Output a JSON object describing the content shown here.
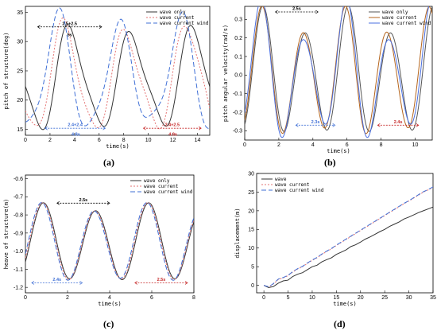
{
  "chart_data": [
    {
      "id": "a",
      "caption": "(a)",
      "type": "line",
      "xlabel": "time(s)",
      "ylabel": "pitch of structure(deg)",
      "xlim": [
        0,
        15
      ],
      "ylim": [
        14,
        36
      ],
      "xticks": [
        0,
        2,
        4,
        6,
        8,
        10,
        12,
        14
      ],
      "yticks": [
        15,
        20,
        25,
        30,
        35
      ],
      "legend_position": "top-right",
      "grid": false,
      "series": [
        {
          "name": "wave only",
          "color": "#333333",
          "dash": "none",
          "model": {
            "center": 23.5,
            "amp": 8,
            "period": 5,
            "phase": 3.0,
            "amp_mod": 0.08,
            "mod_period": 12.0,
            "period2": 2.5,
            "amp2": 1.5,
            "phase2": 0.0
          }
        },
        {
          "name": "wave current",
          "color": "#e57373",
          "dash": "2 2",
          "model": {
            "center": 23.5,
            "amp": 8.5,
            "period": 5,
            "phase": 2.4,
            "amp_mod": 0.1,
            "mod_period": 12.0,
            "period2": 2.4,
            "amp2": 1.4,
            "phase2": 0.3
          }
        },
        {
          "name": "wave current wind",
          "color": "#3f6fd6",
          "dash": "6 3",
          "model": {
            "center": 24,
            "amp": 9,
            "period": 5,
            "phase": 1.8,
            "amp_mod": 0.12,
            "mod_period": 12.0,
            "period2": 2.5,
            "amp2": 1.8,
            "phase2": 0.6
          }
        }
      ],
      "annotations": [
        {
          "text": "2.5+2.5",
          "color": "#000000",
          "x1": 1.0,
          "x2": 6.2,
          "y": 32.5
        },
        {
          "text": "5s",
          "color": "#000000",
          "x1": null,
          "x2": null,
          "y": 31.2,
          "x": 3.6
        },
        {
          "text": "2.4+2.4",
          "color": "#3f6fd6",
          "x1": 1.6,
          "x2": 6.5,
          "y": 15.2
        },
        {
          "text": "4.8s",
          "color": "#3f6fd6",
          "x1": null,
          "x2": null,
          "y": 14.2,
          "x": 4.1
        },
        {
          "text": "2.4+2.5",
          "color": "#c62828",
          "x1": 9.6,
          "x2": 14.3,
          "y": 15.2
        },
        {
          "text": "4.9s",
          "color": "#c62828",
          "x1": null,
          "x2": null,
          "y": 14.2,
          "x": 12.0
        }
      ]
    },
    {
      "id": "b",
      "caption": "(b)",
      "type": "line",
      "xlabel": "time(s)",
      "ylabel": "pitch angular velocity(rad/s)",
      "xlim": [
        0,
        11
      ],
      "ylim": [
        -0.35,
        0.37
      ],
      "xticks": [
        0,
        2,
        4,
        6,
        8,
        10
      ],
      "yticks": [
        -0.3,
        -0.2,
        -0.1,
        0.0,
        0.1,
        0.2,
        0.3
      ],
      "legend_position": "top-right",
      "grid": false,
      "series": [
        {
          "name": "wave only",
          "color": "#555555",
          "dash": "none",
          "model": {
            "center": 0,
            "amp": 0.3,
            "period": 2.5,
            "phase": 1.1,
            "amp_mod": 0.15,
            "mod_period": 5.0,
            "period2": 5,
            "amp2": 0.03,
            "phase2": 0
          }
        },
        {
          "name": "wave current",
          "color": "#b5651d",
          "dash": "none",
          "model": {
            "center": 0,
            "amp": 0.3,
            "period": 2.45,
            "phase": 1.0,
            "amp_mod": 0.15,
            "mod_period": 5.0,
            "period2": 5,
            "amp2": 0.03,
            "phase2": 0.3
          }
        },
        {
          "name": "wave current wind",
          "color": "#4a6fe0",
          "dash": "none",
          "model": {
            "center": 0,
            "amp": 0.3,
            "period": 2.5,
            "phase": 0.85,
            "amp_mod": 0.25,
            "mod_period": 5.0,
            "period2": 5,
            "amp2": 0.04,
            "phase2": 0.6
          }
        }
      ],
      "annotations": [
        {
          "text": "2.5s",
          "color": "#000000",
          "x1": 1.8,
          "x2": 4.3,
          "y": 0.34
        },
        {
          "text": "2.3s",
          "color": "#3f6fd6",
          "x1": 3.0,
          "x2": 5.3,
          "y": -0.27
        },
        {
          "text": "2.4s",
          "color": "#c62828",
          "x1": 7.8,
          "x2": 10.2,
          "y": -0.27
        }
      ]
    },
    {
      "id": "c",
      "caption": "(c)",
      "type": "line",
      "xlabel": "time(s)",
      "ylabel": "heave of structure(m)",
      "xlim": [
        0,
        8
      ],
      "ylim": [
        -1.23,
        -0.58
      ],
      "xticks": [
        0,
        2,
        4,
        6,
        8
      ],
      "yticks": [
        -0.6,
        -0.7,
        -0.8,
        -0.9,
        -1.0,
        -1.1,
        -1.2
      ],
      "legend_position": "top-right",
      "grid": false,
      "series": [
        {
          "name": "wave only",
          "color": "#333333",
          "dash": "none",
          "model": {
            "center": -0.955,
            "amp": 0.2,
            "period": 2.5,
            "phase": 0.55,
            "amp_mod": 0.05,
            "mod_period": 5.0,
            "period2": 5,
            "amp2": 0.015,
            "phase2": 0
          }
        },
        {
          "name": "wave current",
          "color": "#e57373",
          "dash": "2 2",
          "model": {
            "center": -0.955,
            "amp": 0.2,
            "period": 2.5,
            "phase": 0.45,
            "amp_mod": 0.05,
            "mod_period": 5.0,
            "period2": 5,
            "amp2": 0.015,
            "phase2": 0.3
          }
        },
        {
          "name": "wave current wind",
          "color": "#3f6fd6",
          "dash": "6 3",
          "model": {
            "center": -0.955,
            "amp": 0.2,
            "period": 2.5,
            "phase": 0.35,
            "amp_mod": 0.05,
            "mod_period": 5.0,
            "period2": 5,
            "amp2": 0.015,
            "phase2": 0.6
          }
        }
      ],
      "annotations": [
        {
          "text": "2.5s",
          "color": "#000000",
          "x1": 1.5,
          "x2": 4.0,
          "y": -0.735
        },
        {
          "text": "2.4s",
          "color": "#3f6fd6",
          "x1": 0.3,
          "x2": 2.7,
          "y": -1.175
        },
        {
          "text": "2.5s",
          "color": "#c62828",
          "x1": 5.2,
          "x2": 7.7,
          "y": -1.175
        }
      ]
    },
    {
      "id": "d",
      "caption": "(d)",
      "type": "line",
      "xlabel": "time(s)",
      "ylabel": "displacement(m)",
      "xlim": [
        -1.5,
        35
      ],
      "ylim": [
        -2,
        30
      ],
      "xticks": [
        0,
        5,
        10,
        15,
        20,
        25,
        30,
        35
      ],
      "yticks": [
        0,
        5,
        10,
        15,
        20,
        25,
        30
      ],
      "legend_position": "top-left",
      "grid": false,
      "series": [
        {
          "name": "wave",
          "color": "#333333",
          "dash": "none",
          "points": [
            [
              0,
              0
            ],
            [
              1,
              -0.6
            ],
            [
              2,
              -0.3
            ],
            [
              3,
              0.6
            ],
            [
              4,
              1.2
            ],
            [
              5,
              1.4
            ],
            [
              6,
              2.4
            ],
            [
              7,
              3.0
            ],
            [
              8,
              3.4
            ],
            [
              9,
              4.2
            ],
            [
              10,
              5.0
            ],
            [
              11,
              5.4
            ],
            [
              12,
              6.3
            ],
            [
              13,
              6.9
            ],
            [
              14,
              7.4
            ],
            [
              15,
              8.3
            ],
            [
              16,
              8.9
            ],
            [
              17,
              9.5
            ],
            [
              18,
              10.4
            ],
            [
              19,
              10.9
            ],
            [
              20,
              11.6
            ],
            [
              21,
              12.4
            ],
            [
              22,
              13.0
            ],
            [
              23,
              13.7
            ],
            [
              24,
              14.4
            ],
            [
              25,
              15.0
            ],
            [
              26,
              15.8
            ],
            [
              27,
              16.4
            ],
            [
              28,
              17.0
            ],
            [
              29,
              17.8
            ],
            [
              30,
              18.3
            ],
            [
              31,
              18.9
            ],
            [
              32,
              19.5
            ],
            [
              33,
              20.0
            ],
            [
              34,
              20.5
            ],
            [
              35,
              21.0
            ]
          ]
        },
        {
          "name": "wave current",
          "color": "#e57373",
          "dash": "2 2",
          "points": [
            [
              0,
              0
            ],
            [
              1,
              -0.4
            ],
            [
              2,
              0.4
            ],
            [
              3,
              1.6
            ],
            [
              4,
              2.0
            ],
            [
              5,
              2.6
            ],
            [
              6,
              3.6
            ],
            [
              7,
              4.4
            ],
            [
              8,
              5.0
            ],
            [
              9,
              5.9
            ],
            [
              10,
              6.7
            ],
            [
              11,
              7.4
            ],
            [
              12,
              8.3
            ],
            [
              13,
              9.1
            ],
            [
              14,
              9.8
            ],
            [
              15,
              10.7
            ],
            [
              16,
              11.5
            ],
            [
              17,
              12.3
            ],
            [
              18,
              13.1
            ],
            [
              19,
              13.9
            ],
            [
              20,
              14.7
            ],
            [
              21,
              15.5
            ],
            [
              22,
              16.3
            ],
            [
              23,
              17.1
            ],
            [
              24,
              17.9
            ],
            [
              25,
              18.7
            ],
            [
              26,
              19.5
            ],
            [
              27,
              20.3
            ],
            [
              28,
              21.1
            ],
            [
              29,
              21.9
            ],
            [
              30,
              22.6
            ],
            [
              31,
              23.4
            ],
            [
              32,
              24.2
            ],
            [
              33,
              25.0
            ],
            [
              34,
              25.6
            ],
            [
              35,
              26.3
            ]
          ]
        },
        {
          "name": "wave current wind",
          "color": "#3f6fd6",
          "dash": "6 3",
          "points": [
            [
              0,
              0
            ],
            [
              1,
              -0.4
            ],
            [
              2,
              0.5
            ],
            [
              3,
              1.7
            ],
            [
              4,
              2.1
            ],
            [
              5,
              2.7
            ],
            [
              6,
              3.7
            ],
            [
              7,
              4.5
            ],
            [
              8,
              5.1
            ],
            [
              9,
              6.0
            ],
            [
              10,
              6.8
            ],
            [
              11,
              7.5
            ],
            [
              12,
              8.4
            ],
            [
              13,
              9.2
            ],
            [
              14,
              9.9
            ],
            [
              15,
              10.8
            ],
            [
              16,
              11.6
            ],
            [
              17,
              12.4
            ],
            [
              18,
              13.2
            ],
            [
              19,
              14.0
            ],
            [
              20,
              14.8
            ],
            [
              21,
              15.6
            ],
            [
              22,
              16.4
            ],
            [
              23,
              17.2
            ],
            [
              24,
              18.0
            ],
            [
              25,
              18.8
            ],
            [
              26,
              19.6
            ],
            [
              27,
              20.4
            ],
            [
              28,
              21.2
            ],
            [
              29,
              22.0
            ],
            [
              30,
              22.7
            ],
            [
              31,
              23.5
            ],
            [
              32,
              24.3
            ],
            [
              33,
              25.1
            ],
            [
              34,
              25.7
            ],
            [
              35,
              26.4
            ]
          ]
        }
      ],
      "annotations": []
    }
  ]
}
